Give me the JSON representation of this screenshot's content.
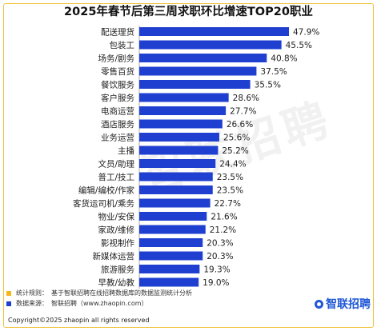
{
  "chart_data": {
    "type": "bar",
    "orientation": "horizontal",
    "title": "2025年春节后第三周求职环比增速TOP20职业",
    "categories": [
      "配送理货",
      "包装工",
      "场务/剧务",
      "零售百货",
      "餐饮服务",
      "客户服务",
      "电商运营",
      "酒店服务",
      "业务运营",
      "主播",
      "文员/助理",
      "普工/技工",
      "编辑/编校/作家",
      "客货运司机/乘务",
      "物业/安保",
      "家政/维修",
      "影视制作",
      "新媒体运营",
      "旅游服务",
      "早教/幼教"
    ],
    "values": [
      47.9,
      45.5,
      40.8,
      37.5,
      35.5,
      28.6,
      27.7,
      26.6,
      25.6,
      25.2,
      24.4,
      23.5,
      23.5,
      22.7,
      21.6,
      21.2,
      20.3,
      20.3,
      19.3,
      19.0
    ],
    "value_labels": [
      "47.9%",
      "45.5%",
      "40.8%",
      "37.5%",
      "35.5%",
      "28.6%",
      "27.7%",
      "26.6%",
      "25.6%",
      "25.2%",
      "24.4%",
      "23.5%",
      "23.5%",
      "22.7%",
      "21.6%",
      "21.2%",
      "20.3%",
      "20.3%",
      "19.3%",
      "19.0%"
    ],
    "value_unit": "%",
    "xlim": [
      0,
      50
    ],
    "grid": false,
    "bar_color": "#1f3fd1"
  },
  "notes": [
    {
      "label": "统计规则：",
      "text": "基于智联招聘在线招聘数据库的数据监测统计分析",
      "color": "#f2b81c"
    },
    {
      "label": "数据来源：",
      "text": "智联招聘（www.zhaopin.com）",
      "color": "#1f3fd1"
    }
  ],
  "copyright": "Copyright©2025 zhaopin all rights reserved",
  "logo_text": "智联招聘",
  "watermark": "智联招聘",
  "colors": {
    "frame": "#f0c23a",
    "brand": "#1f56d6"
  }
}
